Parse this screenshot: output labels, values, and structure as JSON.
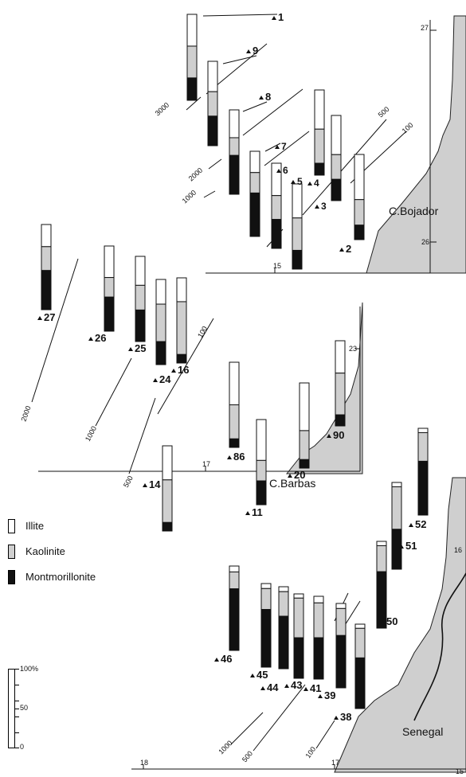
{
  "legend": {
    "illite": "Illite",
    "kaolinite": "Kaolinite",
    "montmorillonite": "Montmorillonite"
  },
  "scale": {
    "top": "100%",
    "mid": "50",
    "bottom": "0"
  },
  "places": {
    "bojador": "C.Bojador",
    "barbas": "C.Barbas",
    "senegal": "Senegal"
  },
  "depth_labels": [
    "3000",
    "2000",
    "1000",
    "500",
    "100",
    "2000",
    "1000",
    "500",
    "100",
    "1000",
    "500",
    "100"
  ],
  "coord_labels": {
    "lat27": "27",
    "lat26": "26",
    "lon15": "15",
    "lat23": "23",
    "lon17": "17",
    "lat16": "16",
    "lon18": "18",
    "lon17b": "17",
    "lon15b": "15"
  },
  "stations": [
    {
      "id": "1",
      "illite": 37,
      "kaolinite": 37,
      "montmorillonite": 26
    },
    {
      "id": "9",
      "illite": 36,
      "kaolinite": 29,
      "montmorillonite": 35
    },
    {
      "id": "8",
      "illite": 33,
      "kaolinite": 21,
      "montmorillonite": 46
    },
    {
      "id": "7",
      "illite": 25,
      "kaolinite": 24,
      "montmorillonite": 51
    },
    {
      "id": "6",
      "illite": 38,
      "kaolinite": 28,
      "montmorillonite": 34
    },
    {
      "id": "5",
      "illite": 40,
      "kaolinite": 38,
      "montmorillonite": 22
    },
    {
      "id": "4",
      "illite": 46,
      "kaolinite": 40,
      "montmorillonite": 14
    },
    {
      "id": "3",
      "illite": 46,
      "kaolinite": 29,
      "montmorillonite": 25
    },
    {
      "id": "2",
      "illite": 53,
      "kaolinite": 30,
      "montmorillonite": 17
    },
    {
      "id": "27",
      "illite": 26,
      "kaolinite": 28,
      "montmorillonite": 46
    },
    {
      "id": "26",
      "illite": 37,
      "kaolinite": 23,
      "montmorillonite": 40
    },
    {
      "id": "25",
      "illite": 34,
      "kaolinite": 29,
      "montmorillonite": 37
    },
    {
      "id": "24",
      "illite": 29,
      "kaolinite": 44,
      "montmorillonite": 27
    },
    {
      "id": "16",
      "illite": 28,
      "kaolinite": 62,
      "montmorillonite": 10
    },
    {
      "id": "86",
      "illite": 50,
      "kaolinite": 40,
      "montmorillonite": 10
    },
    {
      "id": "11",
      "illite": 48,
      "kaolinite": 24,
      "montmorillonite": 28
    },
    {
      "id": "20",
      "illite": 56,
      "kaolinite": 34,
      "montmorillonite": 10
    },
    {
      "id": "90",
      "illite": 38,
      "kaolinite": 49,
      "montmorillonite": 13
    },
    {
      "id": "14",
      "illite": 40,
      "kaolinite": 50,
      "montmorillonite": 10
    },
    {
      "id": "52",
      "illite": 5,
      "kaolinite": 33,
      "montmorillonite": 62
    },
    {
      "id": "51",
      "illite": 5,
      "kaolinite": 49,
      "montmorillonite": 46
    },
    {
      "id": "50",
      "illite": 5,
      "kaolinite": 30,
      "montmorillonite": 65
    },
    {
      "id": "46",
      "illite": 7,
      "kaolinite": 20,
      "montmorillonite": 73
    },
    {
      "id": "45",
      "illite": 6,
      "kaolinite": 25,
      "montmorillonite": 69
    },
    {
      "id": "44",
      "illite": 6,
      "kaolinite": 30,
      "montmorillonite": 64
    },
    {
      "id": "43",
      "illite": 5,
      "kaolinite": 47,
      "montmorillonite": 48
    },
    {
      "id": "41",
      "illite": 8,
      "kaolinite": 42,
      "montmorillonite": 50
    },
    {
      "id": "39",
      "illite": 6,
      "kaolinite": 32,
      "montmorillonite": 62
    },
    {
      "id": "38",
      "illite": 5,
      "kaolinite": 35,
      "montmorillonite": 60
    }
  ]
}
